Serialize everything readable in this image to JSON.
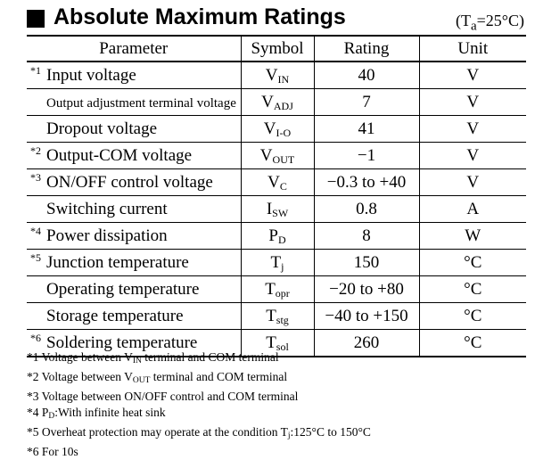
{
  "header": {
    "title": "Absolute Maximum Ratings",
    "condition_prefix": "(T",
    "condition_sub": "a",
    "condition_suffix": "=25°C)"
  },
  "table": {
    "columns": [
      "Parameter",
      "Symbol",
      "Rating",
      "Unit"
    ],
    "rows": [
      {
        "note": "*1",
        "parameter": "Input voltage",
        "symbol": "V",
        "symbol_sub": "IN",
        "rating": "40",
        "unit": "V"
      },
      {
        "note": "",
        "parameter": "Output adjustment terminal voltage",
        "symbol": "V",
        "symbol_sub": "ADJ",
        "rating": "7",
        "unit": "V"
      },
      {
        "note": "",
        "parameter": "Dropout voltage",
        "symbol": "V",
        "symbol_sub": "I-O",
        "rating": "41",
        "unit": "V"
      },
      {
        "note": "*2",
        "parameter": "Output-COM voltage",
        "symbol": "V",
        "symbol_sub": "OUT",
        "rating": "−1",
        "unit": "V"
      },
      {
        "note": "*3",
        "parameter": "ON/OFF control voltage",
        "symbol": "V",
        "symbol_sub": "C",
        "rating": "−0.3 to +40",
        "unit": "V"
      },
      {
        "note": "",
        "parameter": "Switching current",
        "symbol": "I",
        "symbol_sub": "SW",
        "rating": "0.8",
        "unit": "A"
      },
      {
        "note": "*4",
        "parameter": "Power dissipation",
        "symbol": "P",
        "symbol_sub": "D",
        "rating": "8",
        "unit": "W"
      },
      {
        "note": "*5",
        "parameter": "Junction temperature",
        "symbol": "T",
        "symbol_sub": "j",
        "rating": "150",
        "unit": "°C"
      },
      {
        "note": "",
        "parameter": "Operating temperature",
        "symbol": "T",
        "symbol_sub": "opr",
        "rating": "−20 to +80",
        "unit": "°C"
      },
      {
        "note": "",
        "parameter": "Storage temperature",
        "symbol": "T",
        "symbol_sub": "stg",
        "rating": "−40 to +150",
        "unit": "°C"
      },
      {
        "note": "*6",
        "parameter": "Soldering temperature",
        "symbol": "T",
        "symbol_sub": "sol",
        "rating": "260",
        "unit": "°C"
      }
    ]
  },
  "footnotes": {
    "fn1": {
      "a": "*1 Voltage between V",
      "sub": "IN",
      "b": " terminal and COM terminal"
    },
    "fn2": {
      "a": "*2 Voltage between V",
      "sub": "OUT",
      "b": " terminal and COM terminal"
    },
    "fn3": {
      "text": "*3 Voltage between ON/OFF control and COM terminal"
    },
    "fn4": {
      "a": "*4 P",
      "sub": "D",
      "b": ":With infinite heat sink"
    },
    "fn5": {
      "a": "*5 Overheat protection may operate at the condition T",
      "sub": "j",
      "b": ":125°C to 150°C"
    },
    "fn6": {
      "text": "*6 For 10s"
    }
  }
}
